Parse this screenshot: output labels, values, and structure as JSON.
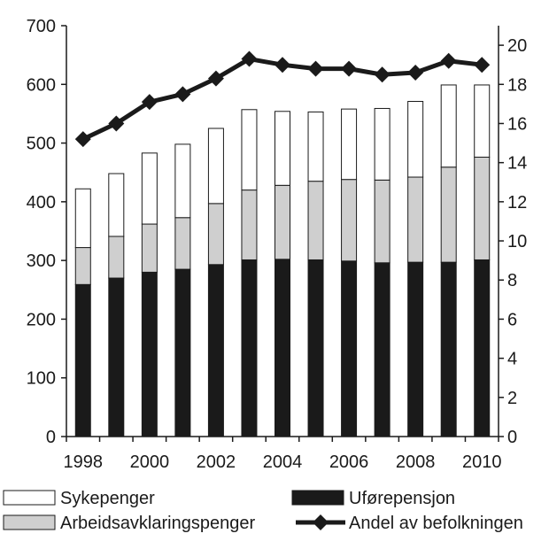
{
  "chart_data": {
    "type": "bar",
    "stacked": true,
    "x": [
      1998,
      1999,
      2000,
      2001,
      2002,
      2003,
      2004,
      2005,
      2006,
      2007,
      2008,
      2009,
      2010
    ],
    "x_tick_labels": [
      "1998",
      "2000",
      "2002",
      "2004",
      "2006",
      "2008",
      "2010"
    ],
    "series": [
      {
        "name": "Uførepensjon",
        "axis": "left",
        "mark": "bar",
        "color": "#1a1a1a",
        "values": [
          259,
          270,
          280,
          285,
          293,
          301,
          302,
          301,
          299,
          296,
          297,
          297,
          301
        ]
      },
      {
        "name": "Arbeidsavklaringspenger",
        "axis": "left",
        "mark": "bar",
        "color": "#cfcfcf",
        "values": [
          63,
          71,
          82,
          88,
          104,
          119,
          126,
          134,
          139,
          141,
          145,
          162,
          175
        ]
      },
      {
        "name": "Sykepenger",
        "axis": "left",
        "mark": "bar",
        "color": "#ffffff",
        "values": [
          100,
          107,
          121,
          125,
          128,
          137,
          126,
          118,
          120,
          122,
          129,
          140,
          123
        ]
      },
      {
        "name": "Andel av befolkningen",
        "axis": "right",
        "mark": "line",
        "marker": "diamond",
        "color": "#1a1a1a",
        "values": [
          15.2,
          16.0,
          17.1,
          17.5,
          18.3,
          19.3,
          19.0,
          18.8,
          18.8,
          18.5,
          18.6,
          19.2,
          19.0
        ]
      }
    ],
    "y_left": {
      "lim": [
        0,
        700
      ],
      "ticks": [
        0,
        100,
        200,
        300,
        400,
        500,
        600,
        700
      ]
    },
    "y_right": {
      "lim": [
        0,
        21
      ],
      "ticks": [
        0,
        2,
        4,
        6,
        8,
        10,
        12,
        14,
        16,
        18,
        20
      ]
    },
    "grid": false,
    "legend": {
      "position": "bottom",
      "entries": [
        {
          "label": "Sykepenger",
          "kind": "box-white"
        },
        {
          "label": "Uførepensjon",
          "kind": "box-black"
        },
        {
          "label": "Arbeidsavklaringspenger",
          "kind": "box-gray"
        },
        {
          "label": "Andel av befolkningen",
          "kind": "line-diamond"
        }
      ]
    }
  }
}
